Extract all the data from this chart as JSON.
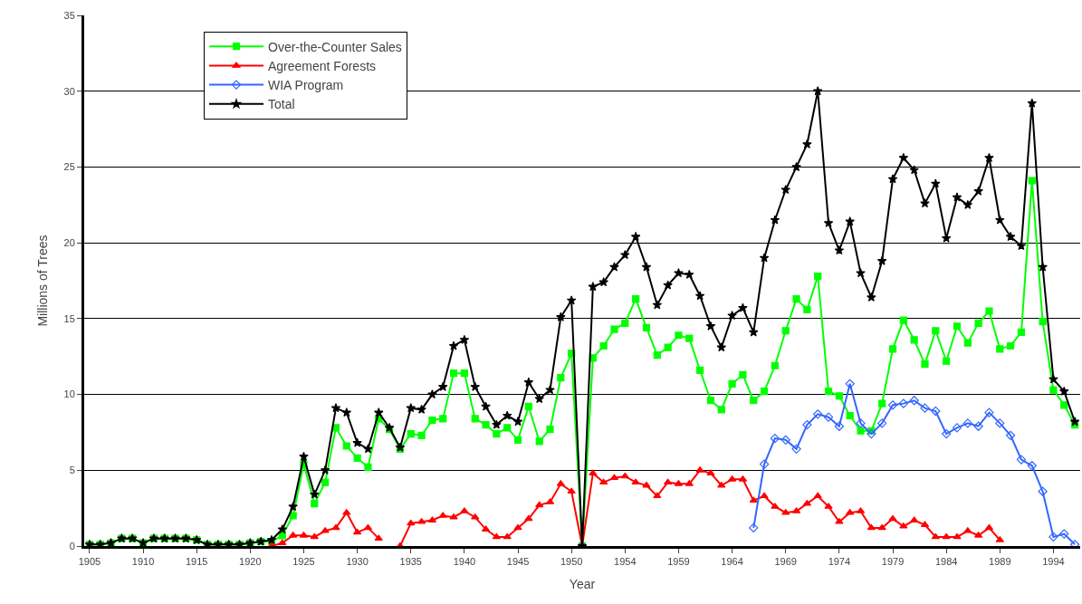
{
  "chart_data": {
    "type": "line",
    "xlabel": "Year",
    "ylabel": "Millions of Trees",
    "categories": [
      "1905",
      null,
      null,
      null,
      null,
      "1910",
      null,
      null,
      null,
      null,
      "1915",
      null,
      null,
      null,
      null,
      "1920",
      null,
      null,
      null,
      null,
      "1925",
      null,
      null,
      null,
      null,
      "1930",
      null,
      null,
      null,
      null,
      "1935",
      null,
      null,
      null,
      null,
      "1940",
      null,
      null,
      null,
      null,
      "1945",
      null,
      null,
      null,
      null,
      "1950",
      null,
      null,
      null,
      null,
      "1954",
      null,
      null,
      null,
      null,
      "1959",
      null,
      null,
      null,
      null,
      "1964",
      null,
      null,
      null,
      null,
      "1969",
      null,
      null,
      null,
      null,
      "1974",
      null,
      null,
      null,
      null,
      "1979",
      null,
      null,
      null,
      null,
      "1984",
      null,
      null,
      null,
      null,
      "1989",
      null,
      null,
      null,
      null,
      "1994",
      null,
      null
    ],
    "series": [
      {
        "name": "Over-the-Counter Sales",
        "color": "#00ff00",
        "marker": "square",
        "values": [
          0.1,
          0.1,
          0.2,
          0.5,
          0.5,
          0.2,
          0.5,
          0.5,
          0.5,
          0.5,
          0.4,
          0.1,
          0.1,
          0.1,
          0.1,
          0.2,
          0.3,
          0.3,
          0.7,
          2.0,
          5.4,
          2.8,
          4.2,
          7.8,
          6.6,
          5.8,
          5.2,
          8.4,
          7.7,
          6.4,
          7.4,
          7.3,
          8.3,
          8.4,
          11.4,
          11.4,
          8.4,
          8.0,
          7.4,
          7.8,
          7.0,
          9.2,
          6.9,
          7.7,
          11.1,
          12.7,
          0,
          12.4,
          13.2,
          14.3,
          14.7,
          16.3,
          14.4,
          12.6,
          13.1,
          13.9,
          13.7,
          11.6,
          9.6,
          9.0,
          10.7,
          11.3,
          9.6,
          10.2,
          11.9,
          14.2,
          16.3,
          15.6,
          17.8,
          10.2,
          9.9,
          8.6,
          7.6,
          7.6,
          9.4,
          13.0,
          14.9,
          13.6,
          12.0,
          14.2,
          12.2,
          14.5,
          13.4,
          14.7,
          15.5,
          13.0,
          13.2,
          14.1,
          24.1,
          14.8,
          10.3,
          9.3,
          8.0
        ]
      },
      {
        "name": "Agreement Forests",
        "color": "#ff0000",
        "marker": "triangle",
        "values": [
          null,
          null,
          null,
          null,
          null,
          null,
          null,
          null,
          null,
          null,
          null,
          null,
          null,
          null,
          null,
          null,
          null,
          0.0,
          0.2,
          0.7,
          0.7,
          0.6,
          1.0,
          1.2,
          2.2,
          0.9,
          1.2,
          0.5,
          null,
          0.0,
          1.5,
          1.6,
          1.7,
          2.0,
          1.9,
          2.3,
          1.9,
          1.1,
          0.6,
          0.6,
          1.2,
          1.8,
          2.7,
          2.9,
          4.1,
          3.6,
          0,
          4.8,
          4.2,
          4.5,
          4.6,
          4.2,
          4.0,
          3.3,
          4.2,
          4.1,
          4.1,
          5.0,
          4.8,
          4.0,
          4.4,
          4.4,
          3.0,
          3.3,
          2.6,
          2.2,
          2.3,
          2.8,
          3.3,
          2.6,
          1.6,
          2.2,
          2.3,
          1.2,
          1.2,
          1.8,
          1.3,
          1.7,
          1.4,
          0.6,
          0.6,
          0.6,
          1.0,
          0.7,
          1.2,
          0.4,
          null,
          null,
          null,
          null,
          null,
          null,
          null
        ]
      },
      {
        "name": "WIA Program",
        "color": "#3366ff",
        "marker": "diamond",
        "values": [
          null,
          null,
          null,
          null,
          null,
          null,
          null,
          null,
          null,
          null,
          null,
          null,
          null,
          null,
          null,
          null,
          null,
          null,
          null,
          null,
          null,
          null,
          null,
          null,
          null,
          null,
          null,
          null,
          null,
          null,
          null,
          null,
          null,
          null,
          null,
          null,
          null,
          null,
          null,
          null,
          null,
          null,
          null,
          null,
          null,
          null,
          0,
          null,
          null,
          null,
          null,
          null,
          null,
          null,
          null,
          null,
          null,
          null,
          null,
          null,
          null,
          null,
          1.2,
          5.4,
          7.1,
          7.0,
          6.4,
          8.0,
          8.7,
          8.5,
          7.9,
          10.7,
          8.1,
          7.4,
          8.1,
          9.3,
          9.4,
          9.6,
          9.1,
          8.9,
          7.4,
          7.8,
          8.1,
          7.9,
          8.8,
          8.1,
          7.3,
          5.7,
          5.3,
          3.6,
          0.6,
          0.8,
          0.1
        ]
      },
      {
        "name": "Total",
        "color": "#000000",
        "marker": "star",
        "values": [
          0.1,
          0.1,
          0.2,
          0.5,
          0.5,
          0.2,
          0.5,
          0.5,
          0.5,
          0.5,
          0.4,
          0.1,
          0.1,
          0.1,
          0.1,
          0.2,
          0.3,
          0.4,
          1.1,
          2.6,
          5.9,
          3.4,
          5.0,
          9.1,
          8.8,
          6.8,
          6.4,
          8.8,
          7.8,
          6.5,
          9.1,
          9.0,
          10.0,
          10.5,
          13.2,
          13.6,
          10.5,
          9.2,
          8.0,
          8.6,
          8.2,
          10.8,
          9.7,
          10.3,
          15.1,
          16.2,
          0,
          17.1,
          17.4,
          18.4,
          19.2,
          20.4,
          18.4,
          15.9,
          17.2,
          18.0,
          17.9,
          16.5,
          14.5,
          13.1,
          15.2,
          15.7,
          14.1,
          19.0,
          21.5,
          23.5,
          25.0,
          26.5,
          30.0,
          21.3,
          19.5,
          21.4,
          18.0,
          16.4,
          18.8,
          24.2,
          25.6,
          24.8,
          22.6,
          23.9,
          20.3,
          23.0,
          22.5,
          23.4,
          25.6,
          21.5,
          20.4,
          19.8,
          29.2,
          18.4,
          11.0,
          10.2,
          8.2
        ]
      }
    ],
    "ylim": [
      0,
      35
    ],
    "yticks": [
      0,
      5,
      10,
      15,
      20,
      25,
      30,
      35
    ],
    "grid": "y",
    "legend": "top left",
    "line_style": "solid"
  }
}
